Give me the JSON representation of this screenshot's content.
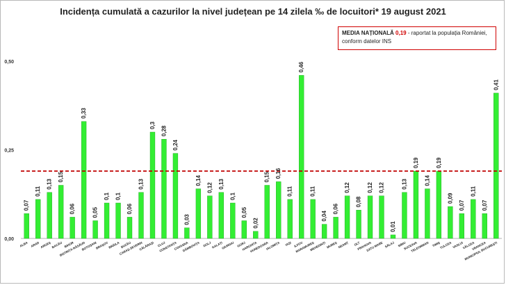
{
  "title": "Incidența cumulată a cazurilor la nivel județean pe 14 zilela ‰ de locuitori*  19 august 2021",
  "note": {
    "label": "MEDIA NAȚIONALĂ",
    "value": "0,19",
    "text_1": " - raportat la populația României,",
    "text_2": "conform datelor INS"
  },
  "colors": {
    "bar": "#33ee33",
    "bar_edge": "#1aa01a",
    "reference_line": "#c00000"
  },
  "chart_data": {
    "type": "bar",
    "categories": [
      "ALBA",
      "ARAD",
      "ARGEȘ",
      "BACĂU",
      "BIHOR",
      "BISTRIȚA-NĂSĂUD",
      "BOTOȘANI",
      "BRAȘOV",
      "BRĂILA",
      "BUZĂU",
      "CARAȘ-SEVERIN",
      "CĂLĂRAȘI",
      "CLUJ",
      "CONSTANȚA",
      "COVASNA",
      "DÂMBOVIȚA",
      "DOLJ",
      "GALAȚI",
      "GIURGIU",
      "GORJ",
      "HARGHITA",
      "HUNEDOARA",
      "IALOMIȚA",
      "IAȘI",
      "ILFOV",
      "MARAMUREȘ",
      "MEHEDINȚI",
      "MUREȘ",
      "NEAMȚ",
      "OLT",
      "PRAHOVA",
      "SATU MARE",
      "SĂLAJ",
      "SIBIU",
      "SUCEAVA",
      "TELEORMAN",
      "TIMIȘ",
      "TULCEA",
      "VASLUI",
      "VÂLCEA",
      "VRANCEA",
      "MUNICIPIUL BUCUREȘTI"
    ],
    "values": [
      0.07,
      0.11,
      0.13,
      0.15,
      0.06,
      0.33,
      0.05,
      0.1,
      0.1,
      0.06,
      0.13,
      0.3,
      0.28,
      0.24,
      0.03,
      0.14,
      0.12,
      0.13,
      0.1,
      0.05,
      0.02,
      0.15,
      0.16,
      0.11,
      0.46,
      0.11,
      0.04,
      0.06,
      0.12,
      0.08,
      0.12,
      0.12,
      0.01,
      0.13,
      0.19,
      0.14,
      0.19,
      0.09,
      0.07,
      0.11,
      0.07,
      0.41
    ],
    "value_labels": [
      "0,07",
      "0,11",
      "0,13",
      "0,15",
      "0,06",
      "0,33",
      "0,05",
      "0,1",
      "0,1",
      "0,06",
      "0,13",
      "0,3",
      "0,28",
      "0,24",
      "0,03",
      "0,14",
      "0,12",
      "0,13",
      "0,1",
      "0,05",
      "0,02",
      "0,15",
      "0,16",
      "0,11",
      "0,46",
      "0,11",
      "0,04",
      "0,06",
      "0,12",
      "0,08",
      "0,12",
      "0,12",
      "0,01",
      "0,13",
      "0,19",
      "0,14",
      "0,19",
      "0,09",
      "0,07",
      "0,11",
      "0,07",
      "0,41"
    ],
    "y_ticks": [
      0,
      0.25,
      0.5
    ],
    "y_tick_labels": [
      "0,00",
      "0,25",
      "0,50"
    ],
    "ylim": [
      0,
      0.5
    ],
    "reference_line": {
      "value": 0.19,
      "style": "dashed"
    },
    "grid": false,
    "legend": "top-right"
  }
}
